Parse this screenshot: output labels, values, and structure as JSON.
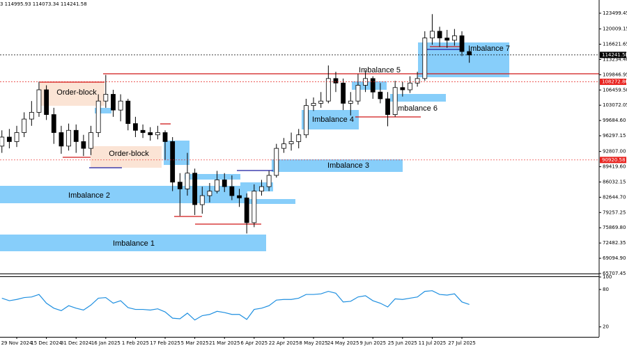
{
  "header": "3 114995.93 114073.34 114241.58",
  "chart_data": [
    {
      "type": "candlestick",
      "categories": [
        null,
        null,
        "29 Nov 2024",
        null,
        null,
        null,
        "15 Dec 2024",
        null,
        null,
        null,
        "31 Dec 2024",
        null,
        null,
        null,
        "16 Jan 2025",
        null,
        null,
        null,
        "1 Feb 2025",
        null,
        null,
        null,
        "17 Feb 2025",
        null,
        null,
        null,
        "5 Mar 2025",
        null,
        null,
        null,
        "21 Mar 2025",
        null,
        null,
        null,
        "6 Apr 2025",
        null,
        null,
        null,
        "22 Apr 2025",
        null,
        null,
        null,
        "8 May 2025",
        null,
        null,
        null,
        "24 May 2025",
        null,
        null,
        null,
        "9 Jun 2025",
        null,
        null,
        null,
        "25 Jun 2025",
        null,
        null,
        null,
        "11 Jul 2025",
        null,
        null,
        null,
        "27 Jul 2025",
        null
      ],
      "open": [
        94000,
        96000,
        95000,
        97000,
        100000,
        101500,
        106500,
        101000,
        97000,
        94000,
        97500,
        95000,
        93500,
        97000,
        104000,
        105500,
        102000,
        104000,
        99000,
        97500,
        97000,
        96500,
        97000,
        95000,
        86000,
        84500,
        88000,
        81000,
        83000,
        84000,
        86500,
        85000,
        83000,
        82500,
        77000,
        84000,
        85000,
        87500,
        93500,
        94500,
        95000,
        96500,
        103000,
        103500,
        104000,
        109000,
        108000,
        103500,
        104000,
        107500,
        109000,
        106000,
        104500,
        101000,
        107000,
        106500,
        108000,
        109000,
        118000,
        119500,
        118000,
        117500,
        118500,
        115000
      ],
      "high": [
        97500,
        97800,
        98500,
        101500,
        104000,
        108300,
        107500,
        102500,
        98500,
        99000,
        98800,
        96500,
        98500,
        105500,
        109800,
        106500,
        105500,
        104500,
        100500,
        98800,
        98200,
        98500,
        97500,
        96000,
        88000,
        92500,
        89000,
        85000,
        85800,
        88500,
        88000,
        87500,
        84500,
        83500,
        85500,
        86500,
        88500,
        94500,
        95800,
        97000,
        97800,
        104500,
        104800,
        106000,
        111900,
        110500,
        109000,
        106000,
        110000,
        110800,
        109500,
        108000,
        106000,
        108500,
        108300,
        109500,
        110500,
        119500,
        123300,
        120500,
        119800,
        120000,
        119500,
        115600
      ],
      "low": [
        92500,
        93500,
        93800,
        96000,
        98500,
        100500,
        99800,
        94500,
        92300,
        93000,
        92500,
        91800,
        92000,
        96000,
        102500,
        100500,
        99500,
        97500,
        96000,
        95800,
        95200,
        95500,
        91000,
        84000,
        78500,
        83000,
        78700,
        79000,
        81500,
        83500,
        83800,
        82000,
        80500,
        74600,
        76000,
        83000,
        84000,
        87000,
        92500,
        93000,
        93500,
        95800,
        101800,
        102500,
        103500,
        106000,
        102000,
        100800,
        103200,
        106000,
        104500,
        103500,
        98400,
        100500,
        105000,
        105800,
        107200,
        108500,
        116500,
        116000,
        115800,
        116300,
        114000,
        112500
      ],
      "close": [
        96000,
        95000,
        97000,
        100000,
        101500,
        106500,
        101000,
        97000,
        94000,
        97500,
        95000,
        93500,
        97000,
        104000,
        105500,
        102000,
        104000,
        99000,
        97500,
        97000,
        96500,
        97000,
        95000,
        86000,
        84500,
        88000,
        81000,
        83000,
        84000,
        86500,
        85000,
        83000,
        82500,
        77000,
        84000,
        85000,
        87500,
        93500,
        94500,
        95000,
        96500,
        103000,
        103500,
        104000,
        109000,
        108000,
        103500,
        104000,
        107500,
        109000,
        106000,
        104500,
        101000,
        107000,
        106500,
        108000,
        109000,
        118000,
        119500,
        118000,
        117500,
        118500,
        115000,
        114241.58
      ],
      "up_color": "#ffffff",
      "down_color": "#000000",
      "wick_color": "#000000",
      "ylim": [
        65707.45,
        126435
      ],
      "yticks": [
        123499.45,
        120009.15,
        116621.65,
        {
          "value": 113234.4,
          "label": "113234.40"
        },
        109846.95,
        {
          "value": 106459.5,
          "label": "106459.50"
        },
        103072.05,
        {
          "value": 99684.6,
          "label": "99684.60"
        },
        96297.15,
        {
          "value": 92807,
          "label": "92807.00"
        },
        {
          "value": 89419.6,
          "label": "89419.60"
        },
        86032.15,
        {
          "value": 82644.7,
          "label": "82644.70"
        },
        79257.25,
        {
          "value": 75869.8,
          "label": "75869.80"
        },
        72482.35,
        {
          "value": 69094.9,
          "label": "69094.90"
        },
        65707.45
      ],
      "price_lines": [
        114241.58,
        108272.86,
        90920.58
      ],
      "price_line_colors": [
        "#000000",
        "#e8231f",
        "#e8231f"
      ],
      "annotations": [
        "Order-block",
        "Order-block",
        "Imbalance 1",
        "Imbalance 2",
        "Imbalance 3",
        "Imbalance 4",
        "Imbalance 5",
        "Imbalance 6",
        "Imbalance 7"
      ]
    },
    {
      "type": "line",
      "values": [
        66,
        62,
        64,
        67,
        68,
        72,
        58,
        50,
        46,
        54,
        50,
        47,
        55,
        66,
        67,
        58,
        62,
        51,
        48,
        48,
        47,
        49,
        44,
        34,
        33,
        42,
        31,
        38,
        40,
        45,
        43,
        40,
        40,
        32,
        48,
        50,
        54,
        63,
        64,
        64,
        66,
        72,
        72,
        73,
        77,
        74,
        60,
        61,
        68,
        70,
        62,
        58,
        52,
        65,
        64,
        66,
        68,
        77,
        78,
        72,
        71,
        73,
        60,
        56
      ],
      "color": "#1e8fe0",
      "ylim": [
        4,
        100
      ],
      "yticks": [
        100,
        80,
        20
      ]
    }
  ]
}
